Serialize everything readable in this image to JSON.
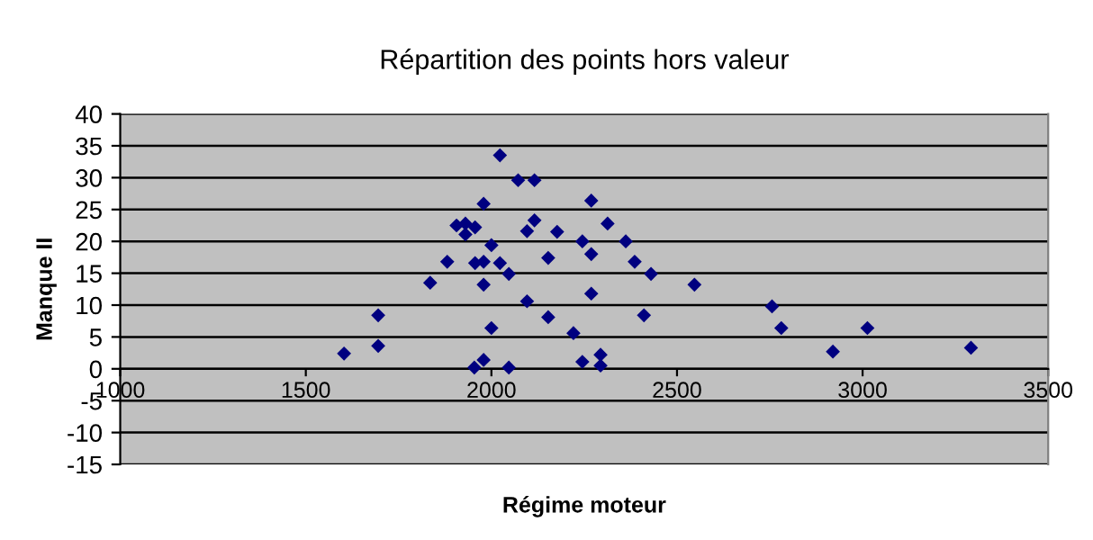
{
  "chart_data": {
    "type": "scatter",
    "title": "Répartition des points hors valeur",
    "xlabel": "Régime moteur",
    "ylabel": "Manque II",
    "xlim": [
      1000,
      3500
    ],
    "xticks": [
      1000,
      1500,
      2000,
      2500,
      3000,
      3500
    ],
    "ylim": [
      -15,
      40
    ],
    "yticks": [
      -15,
      -10,
      -5,
      0,
      5,
      10,
      15,
      20,
      25,
      30,
      35,
      40
    ],
    "grid": "y",
    "marker": "diamond",
    "series": [
      {
        "color": "#000080",
        "x": [
          1603,
          1695,
          1695,
          1835,
          1881,
          1906,
          1930,
          1930,
          1956,
          1956,
          1954,
          1979,
          1979,
          1979,
          1979,
          2000,
          2000,
          2023,
          2023,
          2047,
          2047,
          2072,
          2096,
          2096,
          2116,
          2116,
          2177,
          2153,
          2153,
          2221,
          2245,
          2245,
          2269,
          2269,
          2269,
          2294,
          2294,
          2313,
          2362,
          2386,
          2411,
          2430,
          2547,
          2756,
          2781,
          2920,
          3013,
          3292
        ],
        "values": [
          2.4,
          8.4,
          3.6,
          13.5,
          16.8,
          22.5,
          21.1,
          22.8,
          22.2,
          16.6,
          0.2,
          1.4,
          25.9,
          16.8,
          13.2,
          19.4,
          6.4,
          33.5,
          16.6,
          14.9,
          0.2,
          29.6,
          21.6,
          10.6,
          29.6,
          23.3,
          21.5,
          17.4,
          8.1,
          5.6,
          20.0,
          1.1,
          26.4,
          18.0,
          11.8,
          2.2,
          0.5,
          22.8,
          20.0,
          16.8,
          8.4,
          14.9,
          13.2,
          9.8,
          6.4,
          2.7,
          6.4,
          3.3
        ]
      }
    ]
  }
}
